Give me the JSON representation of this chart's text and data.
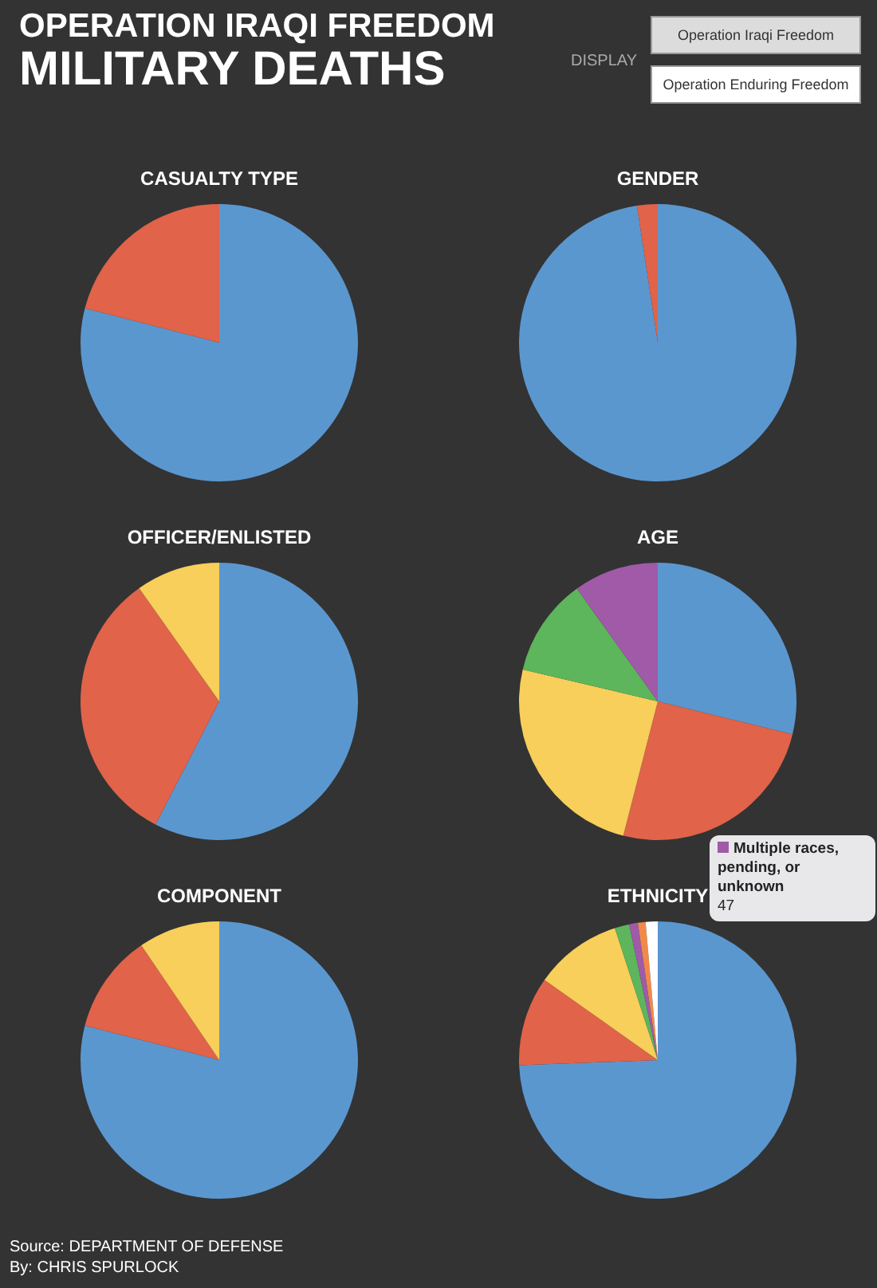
{
  "chart_data": [
    {
      "type": "other",
      "title": "OPERATION IRAQI FREEDOM",
      "subtitle": "MILITARY DEATHS",
      "annotations": [
        "DISPLAY",
        "Operation Iraqi Freedom",
        "Operation Enduring Freedom",
        "Source: DEPARTMENT OF DEFENSE",
        "By: CHRIS SPURLOCK"
      ]
    },
    {
      "type": "pie",
      "title": "CASUALTY TYPE",
      "categories": [
        null,
        null
      ],
      "values": [
        79,
        21
      ],
      "colors": [
        "#5b97cf",
        "#e0634a"
      ]
    },
    {
      "type": "pie",
      "title": "GENDER",
      "categories": [
        null,
        null
      ],
      "values": [
        97.6,
        2.4
      ],
      "colors": [
        "#5b97cf",
        "#e0634a"
      ]
    },
    {
      "type": "pie",
      "title": "OFFICER/ENLISTED",
      "categories": [
        null,
        null,
        null
      ],
      "values": [
        57.6,
        32.6,
        9.8
      ],
      "colors": [
        "#5b97cf",
        "#e0634a",
        "#f7cf5a"
      ]
    },
    {
      "type": "pie",
      "title": "AGE",
      "categories": [
        null,
        null,
        null,
        null,
        null
      ],
      "values": [
        28.8,
        25.2,
        24.7,
        11.4,
        9.9
      ],
      "colors": [
        "#5b97cf",
        "#e0634a",
        "#f7cf5a",
        "#5db55c",
        "#a05aa8"
      ]
    },
    {
      "type": "pie",
      "title": "COMPONENT",
      "categories": [
        null,
        null,
        null
      ],
      "values": [
        79,
        11.5,
        9.5
      ],
      "colors": [
        "#5b97cf",
        "#e0634a",
        "#f7cf5a"
      ]
    },
    {
      "type": "pie",
      "title": "ETHNICITY",
      "categories": [
        null,
        null,
        null,
        null,
        "Multiple races, pending, or unknown",
        null,
        null
      ],
      "values": [
        74.4,
        10.4,
        10.2,
        1.7,
        1.0,
        0.9,
        1.4
      ],
      "colors": [
        "#5b97cf",
        "#e0634a",
        "#f7cf5a",
        "#5db55c",
        "#a05aa8",
        "#f08a4b",
        "#ffffff"
      ],
      "annotations": [
        "47"
      ]
    }
  ]
}
